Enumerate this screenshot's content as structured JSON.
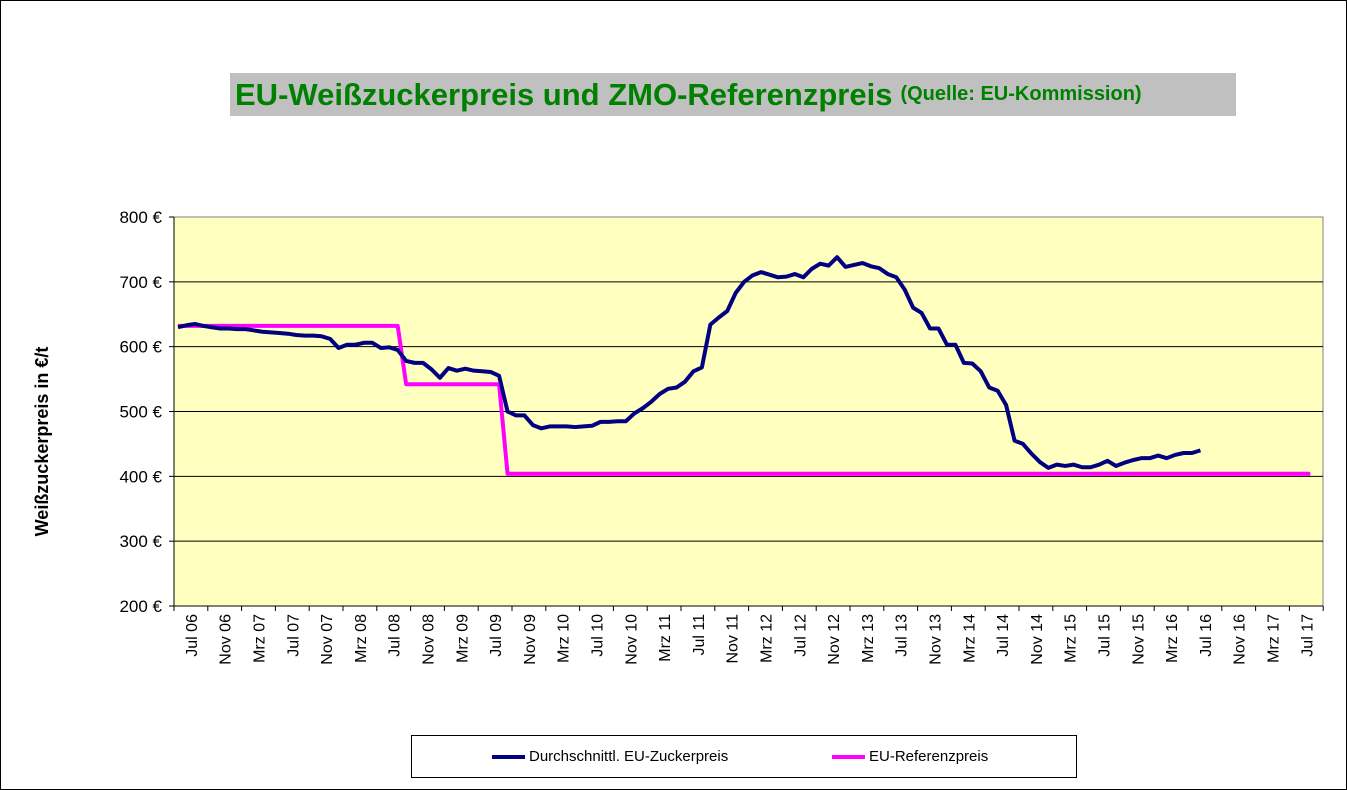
{
  "chart_data": {
    "type": "line",
    "title": "EU-Weißzuckerpreis und ZMO-Referenzpreis",
    "subtitle": "(Quelle: EU-Kommission)",
    "ylabel": "Weißzuckerpreis in €/t",
    "xlabel": "",
    "ylim": [
      200,
      800
    ],
    "yticks": [
      200,
      300,
      400,
      500,
      600,
      700,
      800
    ],
    "ytick_suffix": " €",
    "x_categories": [
      "Jul 06",
      "Nov 06",
      "Mrz 07",
      "Jul 07",
      "Nov 07",
      "Mrz 08",
      "Jul 08",
      "Nov 08",
      "Mrz 09",
      "Jul 09",
      "Nov 09",
      "Mrz 10",
      "Jul 10",
      "Nov 10",
      "Mrz 11",
      "Jul 11",
      "Nov 11",
      "Mrz 12",
      "Jul 12",
      "Nov 12",
      "Mrz 13",
      "Jul 13",
      "Nov 13",
      "Mrz 14",
      "Jul 14",
      "Nov 14",
      "Mrz 15",
      "Jul 15",
      "Nov 15",
      "Mrz 16",
      "Jul 16",
      "Nov 16",
      "Mrz 17",
      "Jul 17"
    ],
    "months_per_category": 4,
    "grid": true,
    "plot_background": "#ffffc0",
    "legend_position": "bottom",
    "series": [
      {
        "name": "Durchschnittl. EU-Zuckerpreis",
        "color": "#000080",
        "x_start": "Jul 06",
        "values": [
          630,
          633,
          635,
          632,
          630,
          628,
          628,
          627,
          627,
          625,
          623,
          622,
          621,
          620,
          618,
          617,
          617,
          616,
          612,
          598,
          603,
          603,
          606,
          606,
          598,
          599,
          595,
          578,
          575,
          575,
          565,
          552,
          567,
          563,
          566,
          563,
          562,
          561,
          555,
          500,
          494,
          494,
          479,
          474,
          477,
          477,
          477,
          476,
          477,
          478,
          484,
          484,
          485,
          485,
          497,
          505,
          515,
          527,
          535,
          537,
          546,
          562,
          568,
          634,
          645,
          655,
          683,
          700,
          710,
          715,
          711,
          707,
          708,
          712,
          707,
          720,
          728,
          725,
          738,
          723,
          726,
          729,
          724,
          721,
          712,
          707,
          688,
          660,
          652,
          628,
          628,
          603,
          603,
          575,
          574,
          562,
          537,
          532,
          510,
          455,
          450,
          435,
          422,
          413,
          418,
          416,
          418,
          414,
          414,
          418,
          424,
          416,
          421,
          425,
          428,
          428,
          432,
          428,
          433,
          436,
          436,
          440
        ]
      },
      {
        "name": "EU-Referenzpreis",
        "color": "#ff00ff",
        "points": [
          [
            "Jul 06",
            632
          ],
          [
            "Sep 08",
            632
          ],
          [
            "Okt 08",
            542
          ],
          [
            "Sep 09",
            542
          ],
          [
            "Okt 09",
            404
          ],
          [
            "Sep 17",
            404
          ]
        ]
      }
    ]
  }
}
